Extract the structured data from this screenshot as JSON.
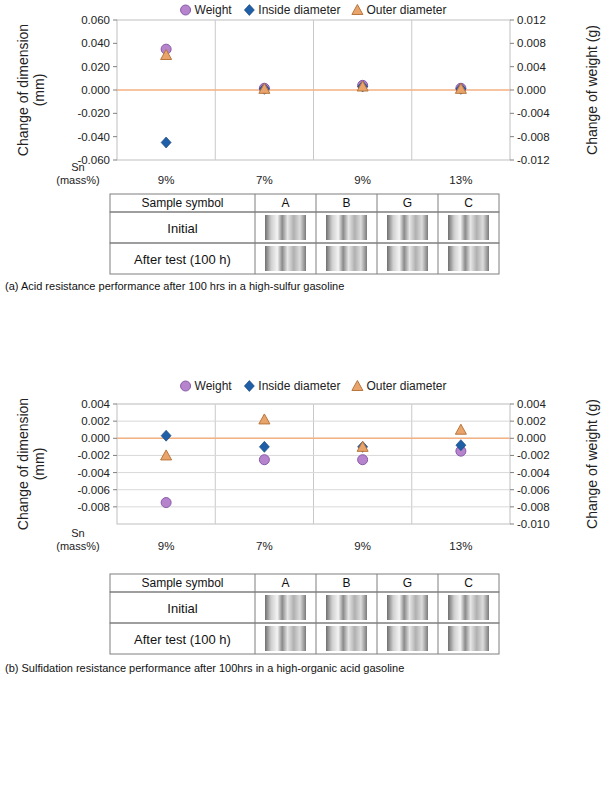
{
  "chart_data": [
    {
      "type": "scatter",
      "categories": [
        "9%",
        "7%",
        "9%",
        "13%"
      ],
      "x_label": [
        "Sn",
        "(mass%)"
      ],
      "y_label": "Change of dimension (mm)",
      "y2_label": "Change of weight (g)",
      "legend": "top",
      "grid": "x",
      "ylim": [
        -0.06,
        0.06
      ],
      "yticks": [
        {
          "value": 0.06,
          "label": "0.060"
        },
        {
          "value": 0.04,
          "label": "0.040"
        },
        {
          "value": 0.02,
          "label": "0.020"
        },
        {
          "value": 0,
          "label": "0.000"
        },
        {
          "value": -0.02,
          "label": "-0.020"
        },
        {
          "value": -0.04,
          "label": "-0.040"
        },
        {
          "value": -0.06,
          "label": "-0.060"
        }
      ],
      "y2lim": [
        -0.012,
        0.012
      ],
      "y2ticks": [
        {
          "value": 0.012,
          "label": "0.012"
        },
        {
          "value": 0.008,
          "label": "0.008"
        },
        {
          "value": 0.004,
          "label": "0.004"
        },
        {
          "value": 0,
          "label": "0.000"
        },
        {
          "value": -0.004,
          "label": "-0.004"
        },
        {
          "value": -0.008,
          "label": "-0.008"
        },
        {
          "value": -0.012,
          "label": "-0.012"
        }
      ],
      "reference_line": {
        "value": 0,
        "color": "#f4b183"
      },
      "series": [
        {
          "name": "Weight",
          "color": "#b584cc",
          "marker": "circle",
          "axis": "y2",
          "values": [
            0.007,
            0.0003,
            0.0008,
            0.0003
          ]
        },
        {
          "name": "Inside diameter",
          "color": "#1f5fa8",
          "marker": "diamond",
          "values": [
            -0.045,
            0.001,
            0.003,
            0.001
          ]
        },
        {
          "name": "Outer diameter",
          "color": "#e8a46a",
          "marker": "triangle",
          "values": [
            0.03,
            0.001,
            0.003,
            0.001
          ]
        }
      ]
    },
    {
      "type": "scatter",
      "categories": [
        "9%",
        "7%",
        "9%",
        "13%"
      ],
      "x_label": [
        "Sn",
        "(mass%)"
      ],
      "y_label": "Change of dimension (mm)",
      "y2_label": "Change of weight (g)",
      "legend": "top",
      "grid": true,
      "ylim": [
        -0.01,
        0.004
      ],
      "yticks": [
        {
          "value": 0.004,
          "label": "0.004"
        },
        {
          "value": 0.002,
          "label": "0.002"
        },
        {
          "value": 0,
          "label": "0.000"
        },
        {
          "value": -0.002,
          "label": "-0.002"
        },
        {
          "value": -0.004,
          "label": "-0.004"
        },
        {
          "value": -0.006,
          "label": "-0.006"
        },
        {
          "value": -0.008,
          "label": "-0.008"
        }
      ],
      "y2lim": [
        -0.01,
        0.004
      ],
      "y2ticks": [
        {
          "value": 0.004,
          "label": "0.004"
        },
        {
          "value": 0.002,
          "label": "0.002"
        },
        {
          "value": 0,
          "label": "0.000"
        },
        {
          "value": -0.002,
          "label": "-0.002"
        },
        {
          "value": -0.004,
          "label": "-0.004"
        },
        {
          "value": -0.006,
          "label": "-0.006"
        },
        {
          "value": -0.008,
          "label": "-0.008"
        },
        {
          "value": -0.01,
          "label": "-0.010"
        }
      ],
      "reference_line": {
        "value": 0,
        "color": "#f4b183"
      },
      "series": [
        {
          "name": "Weight",
          "color": "#b584cc",
          "marker": "circle",
          "axis": "y2",
          "values": [
            -0.0075,
            -0.0025,
            -0.0025,
            -0.0015
          ]
        },
        {
          "name": "Inside diameter",
          "color": "#1f5fa8",
          "marker": "diamond",
          "values": [
            0.0003,
            -0.001,
            -0.001,
            -0.0008
          ]
        },
        {
          "name": "Outer diameter",
          "color": "#e8a46a",
          "marker": "triangle",
          "values": [
            -0.002,
            0.0022,
            -0.001,
            0.001
          ]
        }
      ]
    }
  ],
  "tables": [
    {
      "header": [
        "Sample symbol",
        "A",
        "B",
        "G",
        "C"
      ],
      "rows": [
        "Initial",
        "After test (100 h)"
      ]
    },
    {
      "header": [
        "Sample symbol",
        "A",
        "B",
        "G",
        "C"
      ],
      "rows": [
        "Initial",
        "After test (100 h)"
      ]
    }
  ],
  "captions": [
    "(a) Acid resistance performance after 100 hrs in a high-sulfur gasoline",
    "(b) Sulfidation resistance performance after 100hrs in a high-organic acid gasoline"
  ]
}
